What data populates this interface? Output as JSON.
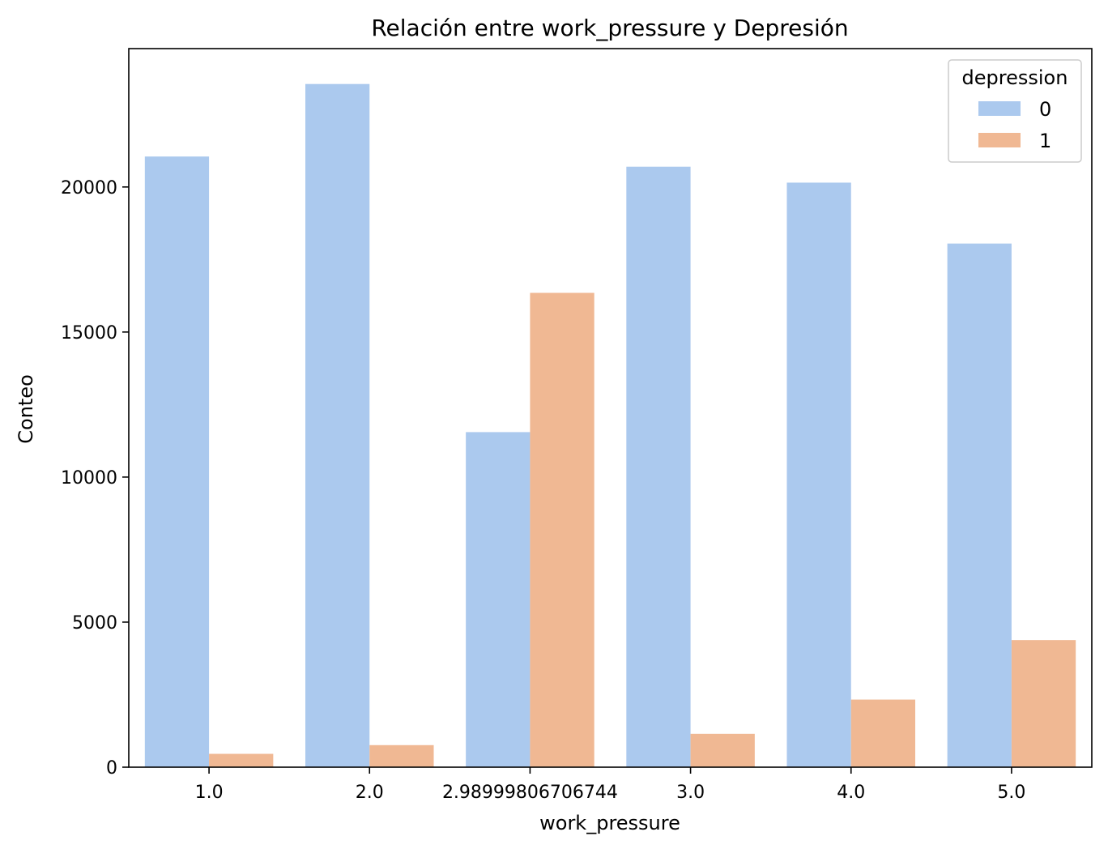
{
  "chart_data": {
    "type": "bar",
    "title": "Relación entre work_pressure y Depresión",
    "xlabel": "work_pressure",
    "ylabel": "Conteo",
    "categories": [
      "1.0",
      "2.0",
      "2.98999806706744",
      "3.0",
      "4.0",
      "5.0"
    ],
    "series": [
      {
        "name": "0",
        "color": "#abc9ee",
        "values": [
          21050,
          23550,
          11550,
          20700,
          20150,
          18050
        ]
      },
      {
        "name": "1",
        "color": "#f0b893",
        "values": [
          460,
          760,
          16350,
          1150,
          2330,
          4380
        ]
      }
    ],
    "ylim": [
      0,
      24770
    ],
    "yticks": [
      0,
      5000,
      10000,
      15000,
      20000
    ],
    "grid": false,
    "legend": {
      "title": "depression",
      "position": "top-right"
    }
  }
}
